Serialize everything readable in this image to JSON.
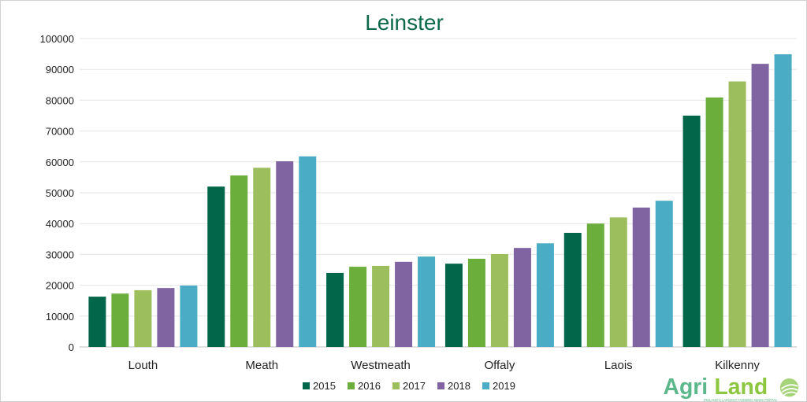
{
  "chart_data": {
    "type": "bar",
    "title": "Leinster",
    "categories": [
      "Louth",
      "Meath",
      "Westmeath",
      "Offaly",
      "Laois",
      "Kilkenny"
    ],
    "series": [
      {
        "name": "2015",
        "color": "#02674a",
        "values": [
          16300,
          52000,
          24000,
          27000,
          37000,
          75000
        ]
      },
      {
        "name": "2016",
        "color": "#6bae3b",
        "values": [
          17300,
          55600,
          26000,
          28600,
          40000,
          80900
        ]
      },
      {
        "name": "2017",
        "color": "#9cbe5d",
        "values": [
          18400,
          58100,
          26300,
          30100,
          42000,
          86100
        ]
      },
      {
        "name": "2018",
        "color": "#8064a2",
        "values": [
          19100,
          60200,
          27600,
          32100,
          45200,
          91800
        ]
      },
      {
        "name": "2019",
        "color": "#4bacc6",
        "values": [
          19900,
          61800,
          29300,
          33600,
          47400,
          94900
        ]
      }
    ],
    "ylim": [
      0,
      100000
    ],
    "yticks": [
      0,
      10000,
      20000,
      30000,
      40000,
      50000,
      60000,
      70000,
      80000,
      90000,
      100000
    ],
    "grid": true,
    "legend_position": "bottom"
  },
  "logo": {
    "text": "AgriLand",
    "tagline": "IRELAND'S LARGEST FARMING NEWS PORTAL"
  }
}
